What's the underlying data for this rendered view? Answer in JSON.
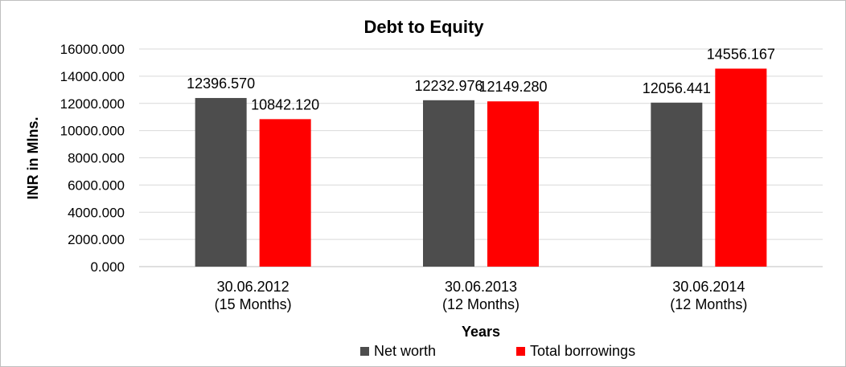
{
  "chart_data": {
    "type": "bar",
    "title": "Debt to Equity",
    "xlabel": "Years",
    "ylabel": "INR in Mlns.",
    "categories": [
      [
        "30.06.2012",
        "(15 Months)"
      ],
      [
        "30.06.2013",
        "(12 Months)"
      ],
      [
        "30.06.2014",
        "(12 Months)"
      ]
    ],
    "series": [
      {
        "name": "Net worth",
        "color": "#4d4d4d",
        "values": [
          12396.57,
          12232.976,
          12056.441
        ],
        "labels": [
          "12396.570",
          "12232.976",
          "12056.441"
        ]
      },
      {
        "name": "Total borrowings",
        "color": "#ff0000",
        "values": [
          10842.12,
          12149.28,
          14556.167
        ],
        "labels": [
          "10842.120",
          "12149.280",
          "14556.167"
        ]
      }
    ],
    "ylim": [
      0,
      16000
    ],
    "yticks": [
      "0.000",
      "2000.000",
      "4000.000",
      "6000.000",
      "8000.000",
      "10000.000",
      "12000.000",
      "14000.000",
      "16000.000"
    ],
    "grid": true,
    "legend": "bottom"
  }
}
